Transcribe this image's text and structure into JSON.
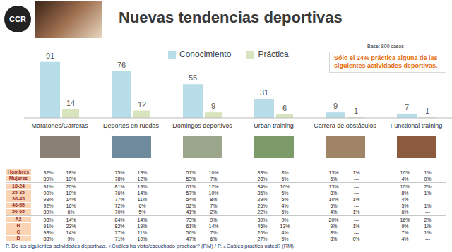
{
  "header": {
    "logo": "CCR",
    "title": "Nuevas tendencias deportivas",
    "base": "Base: 800 casos",
    "note": "Sólo el 24% práctica alguna de las siguientes actividades deportivas."
  },
  "chart_data": {
    "type": "bar",
    "categories": [
      "Maratones/Carreras",
      "Deportes en ruedas",
      "Domingos deportivos",
      "Urban training",
      "Carrera de obstáculos",
      "Functional training"
    ],
    "series": [
      {
        "name": "Conocimiento",
        "color": "#b7dde8",
        "values": [
          91,
          76,
          55,
          31,
          9,
          7
        ]
      },
      {
        "name": "Práctica",
        "color": "#d7e4bd",
        "values": [
          14,
          12,
          9,
          6,
          1,
          1
        ]
      }
    ],
    "ylim": [
      0,
      100
    ],
    "data_labels": true,
    "tick_labels": "x",
    "legend": "top"
  },
  "table": {
    "groups": [
      [
        {
          "label": "Hombres",
          "cells": [
            "92%",
            "18%",
            "75%",
            "13%",
            "57%",
            "10%",
            "33%",
            "8%",
            "13%",
            "1%",
            "10%",
            "1%"
          ]
        },
        {
          "label": "Mujeres",
          "cells": [
            "89%",
            "10%",
            "78%",
            "12%",
            "53%",
            "7%",
            "28%",
            "5%",
            "5%",
            "---",
            "4%",
            "0%"
          ]
        }
      ],
      [
        {
          "label": "18-24",
          "cells": [
            "91%",
            "20%",
            "81%",
            "19%",
            "61%",
            "12%",
            "34%",
            "10%",
            "13%",
            "---",
            "10%",
            "2%"
          ]
        },
        {
          "label": "25-35",
          "cells": [
            "90%",
            "10%",
            "76%",
            "14%",
            "57%",
            "10%",
            "35%",
            "5%",
            "8%",
            "---",
            "8%",
            "1%"
          ]
        },
        {
          "label": "36-45",
          "cells": [
            "93%",
            "14%",
            "77%",
            "11%",
            "54%",
            "8%",
            "29%",
            "5%",
            "10%",
            "1%",
            "4%",
            "---"
          ]
        },
        {
          "label": "46-55",
          "cells": [
            "92%",
            "16%",
            "72%",
            "6%",
            "52%",
            "7%",
            "26%",
            "4%",
            "5%",
            "---",
            "5%",
            "1%"
          ]
        },
        {
          "label": "56-65",
          "cells": [
            "89%",
            "6%",
            "70%",
            "5%",
            "41%",
            "2%",
            "22%",
            "5%",
            "4%",
            "1%",
            "6%",
            "---"
          ]
        }
      ],
      [
        {
          "label": "A2",
          "cells": [
            "98%",
            "14%",
            "84%",
            "14%",
            "73%",
            "9%",
            "39%",
            "9%",
            "20%",
            "---",
            "16%",
            "2%"
          ]
        },
        {
          "label": "B",
          "cells": [
            "91%",
            "23%",
            "82%",
            "19%",
            "61%",
            "14%",
            "45%",
            "13%",
            "9%",
            "1%",
            "9%",
            "1%"
          ]
        },
        {
          "label": "C",
          "cells": [
            "93%",
            "14%",
            "77%",
            "11%",
            "56%",
            "7%",
            "26%",
            "4%",
            "8%",
            "---",
            "7%",
            "1%"
          ]
        },
        {
          "label": "D",
          "cells": [
            "88%",
            "9%",
            "71%",
            "10%",
            "47%",
            "6%",
            "27%",
            "5%",
            "8%",
            "0%",
            "4%",
            "---"
          ]
        }
      ]
    ]
  },
  "footnote": "P. De las siguientes actividades deportivas, ¿Cuáles ha  visto/escuchado practicar? (RM) / P. ¿Cuáles practica usted? (RM)"
}
